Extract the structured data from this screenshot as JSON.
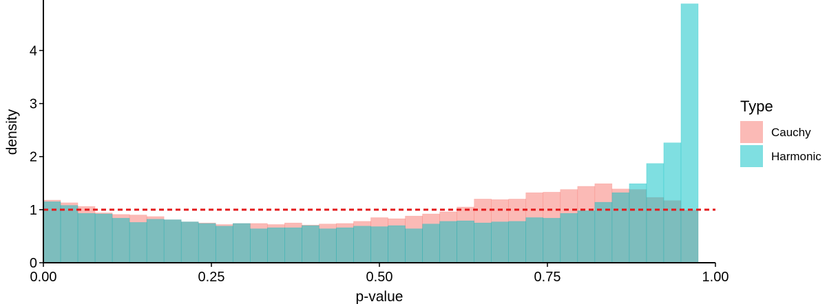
{
  "chart_data": {
    "type": "histogram",
    "xlabel": "p-value",
    "ylabel": "density",
    "xlim": [
      0,
      1
    ],
    "ylim": [
      0,
      4.9
    ],
    "x_ticks": [
      "0.00",
      "0.25",
      "0.50",
      "0.75",
      "1.00"
    ],
    "y_ticks": [
      "0",
      "1",
      "2",
      "3",
      "4"
    ],
    "bin_width": 0.025641,
    "bin_edges_start": 0,
    "reference_line": {
      "y": 1,
      "style": "dashed",
      "color": "#e41a1c"
    },
    "legend": {
      "title": "Type",
      "placement": "right"
    },
    "series": [
      {
        "name": "Cauchy",
        "color": "#F8766D",
        "values": [
          1.18,
          1.13,
          1.06,
          0.94,
          0.91,
          0.9,
          0.87,
          0.81,
          0.77,
          0.75,
          0.72,
          0.74,
          0.74,
          0.72,
          0.75,
          0.71,
          0.73,
          0.74,
          0.78,
          0.85,
          0.83,
          0.88,
          0.92,
          0.96,
          1.05,
          1.2,
          1.19,
          1.2,
          1.32,
          1.33,
          1.38,
          1.44,
          1.49,
          1.39,
          1.38,
          1.23,
          1.17,
          0.99
        ]
      },
      {
        "name": "Harmonic",
        "color": "#00BFC4",
        "values": [
          1.15,
          1.08,
          0.93,
          0.92,
          0.84,
          0.76,
          0.82,
          0.81,
          0.77,
          0.74,
          0.69,
          0.74,
          0.64,
          0.66,
          0.66,
          0.7,
          0.64,
          0.66,
          0.69,
          0.68,
          0.7,
          0.64,
          0.73,
          0.78,
          0.79,
          0.75,
          0.77,
          0.78,
          0.85,
          0.84,
          0.93,
          0.98,
          1.14,
          1.32,
          1.49,
          1.87,
          2.26,
          4.88
        ]
      }
    ]
  }
}
